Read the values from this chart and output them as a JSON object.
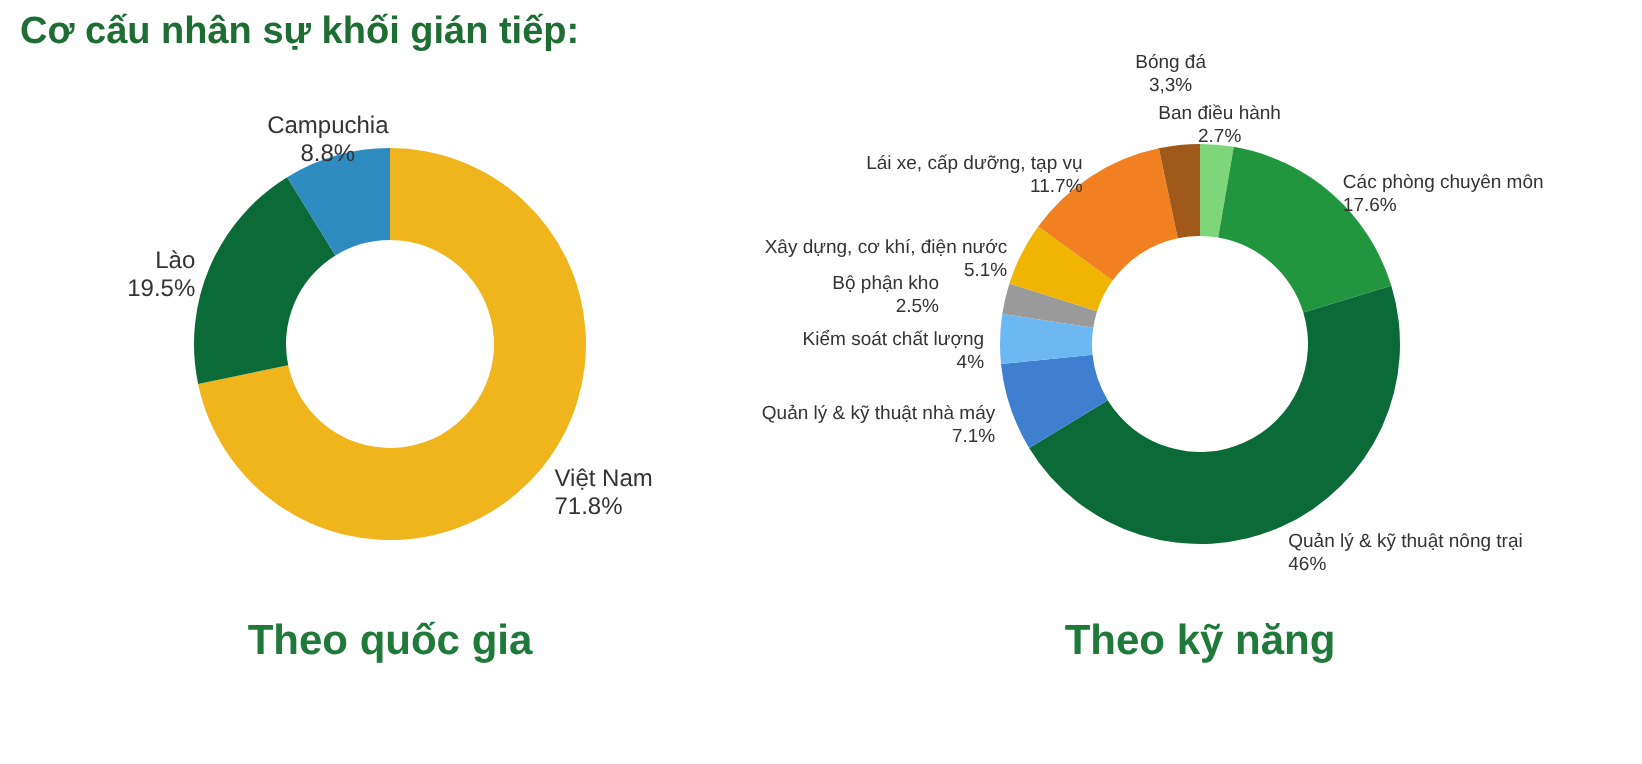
{
  "chart_data": [
    {
      "type": "donut",
      "title": "Theo quốc gia",
      "annotations": [
        "Cơ cấu nhân sự khối gián tiếp:"
      ],
      "categories": [
        "Việt Nam",
        "Lào",
        "Campuchia"
      ],
      "values": [
        71.8,
        19.5,
        8.8
      ],
      "value_labels": [
        "71.8%",
        "19.5%",
        "8.8%"
      ],
      "colors": [
        "#f0b51d",
        "#0b6b38",
        "#2e8bc0"
      ],
      "legend": false
    },
    {
      "type": "donut",
      "title": "Theo kỹ năng",
      "categories": [
        "Ban điều hành",
        "Các phòng chuyên môn",
        "Quản lý & kỹ thuật nông trại",
        "Quản lý & kỹ thuật nhà máy",
        "Kiểm soát chất lượng",
        "Bộ phận kho",
        "Xây dựng, cơ khí, điện nước",
        "Lái xe, cấp dưỡng, tạp vụ",
        "Bóng đá"
      ],
      "values": [
        2.7,
        17.6,
        46,
        7.1,
        4,
        2.5,
        5.1,
        11.7,
        3.3
      ],
      "value_labels": [
        "2.7%",
        "17.6%",
        "46%",
        "7.1%",
        "4%",
        "2.5%",
        "5.1%",
        "11.7%",
        "3,3%"
      ],
      "colors": [
        "#7fd67a",
        "#22963f",
        "#0b6b38",
        "#3f7fcf",
        "#6cb8f2",
        "#9a9a9a",
        "#f0b500",
        "#f08020",
        "#a0591a"
      ],
      "legend": false
    }
  ]
}
